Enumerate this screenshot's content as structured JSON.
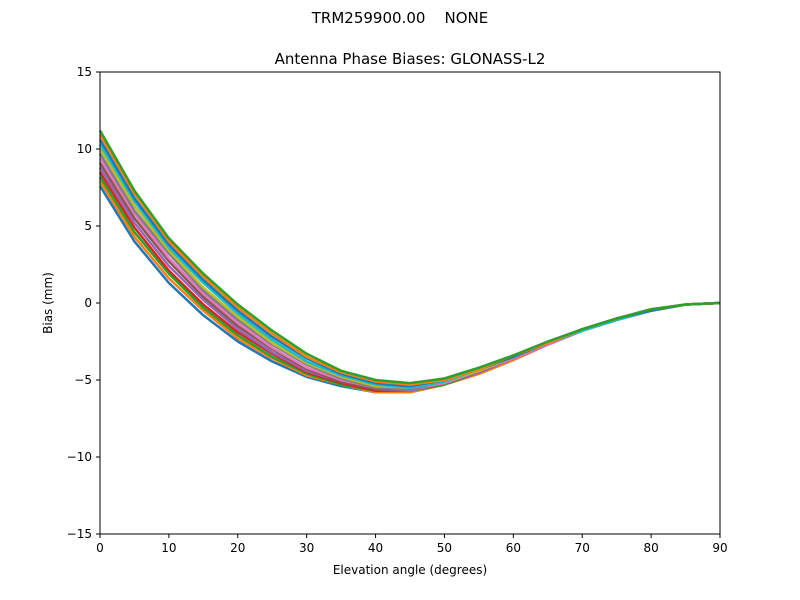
{
  "page": {
    "suptitle": "TRM259900.00    NONE"
  },
  "chart_data": {
    "type": "line",
    "title": "Antenna Phase Biases: GLONASS-L2",
    "xlabel": "Elevation angle (degrees)",
    "ylabel": "Bias (mm)",
    "xlim": [
      0,
      90
    ],
    "ylim": [
      -15,
      15
    ],
    "xticks": [
      0,
      10,
      20,
      30,
      40,
      50,
      60,
      70,
      80,
      90
    ],
    "yticks": [
      -15,
      -10,
      -5,
      0,
      5,
      10,
      15
    ],
    "xtick_labels": [
      "0",
      "10",
      "20",
      "30",
      "40",
      "50",
      "60",
      "70",
      "80",
      "90"
    ],
    "ytick_labels": [
      "−15",
      "−10",
      "−5",
      "0",
      "5",
      "10",
      "15"
    ],
    "grid": false,
    "legend": "none",
    "x": [
      0,
      5,
      10,
      15,
      20,
      25,
      30,
      35,
      40,
      45,
      50,
      55,
      60,
      65,
      70,
      75,
      80,
      85,
      90
    ],
    "series_colors": [
      "#1f77b4",
      "#ff7f0e",
      "#2ca02c",
      "#d62728",
      "#9467bd",
      "#8c564b",
      "#e377c2",
      "#7f7f7f",
      "#bcbd22",
      "#17becf"
    ],
    "series": [
      {
        "values": [
          7.6,
          4.0,
          1.3,
          -0.8,
          -2.5,
          -3.8,
          -4.8,
          -5.4,
          -5.8,
          -5.8,
          -5.3,
          -4.6,
          -3.7,
          -2.7,
          -1.8,
          -1.1,
          -0.5,
          -0.1,
          0.0
        ]
      },
      {
        "values": [
          7.9,
          4.3,
          1.6,
          -0.5,
          -2.3,
          -3.6,
          -4.7,
          -5.3,
          -5.8,
          -5.8,
          -5.3,
          -4.6,
          -3.7,
          -2.7,
          -1.8,
          -1.1,
          -0.5,
          -0.1,
          0.0
        ]
      },
      {
        "values": [
          8.2,
          4.6,
          1.9,
          -0.3,
          -2.1,
          -3.5,
          -4.6,
          -5.3,
          -5.7,
          -5.7,
          -5.3,
          -4.5,
          -3.6,
          -2.7,
          -1.8,
          -1.1,
          -0.5,
          -0.1,
          0.0
        ]
      },
      {
        "values": [
          8.5,
          4.9,
          2.1,
          -0.1,
          -1.9,
          -3.3,
          -4.5,
          -5.2,
          -5.7,
          -5.7,
          -5.2,
          -4.5,
          -3.6,
          -2.7,
          -1.8,
          -1.1,
          -0.5,
          -0.1,
          0.0
        ]
      },
      {
        "values": [
          8.8,
          5.2,
          2.4,
          0.2,
          -1.7,
          -3.2,
          -4.4,
          -5.1,
          -5.6,
          -5.7,
          -5.2,
          -4.5,
          -3.6,
          -2.7,
          -1.8,
          -1.1,
          -0.5,
          -0.1,
          0.0
        ]
      },
      {
        "values": [
          9.1,
          5.5,
          2.7,
          0.4,
          -1.5,
          -3.0,
          -4.3,
          -5.1,
          -5.6,
          -5.6,
          -5.2,
          -4.4,
          -3.6,
          -2.7,
          -1.8,
          -1.1,
          -0.5,
          -0.1,
          0.0
        ]
      },
      {
        "values": [
          9.4,
          5.8,
          2.9,
          0.6,
          -1.3,
          -2.9,
          -4.2,
          -5.0,
          -5.5,
          -5.6,
          -5.2,
          -4.4,
          -3.6,
          -2.7,
          -1.8,
          -1.1,
          -0.5,
          -0.1,
          0.0
        ]
      },
      {
        "values": [
          9.7,
          6.0,
          3.2,
          0.8,
          -1.1,
          -2.7,
          -4.0,
          -4.9,
          -5.5,
          -5.6,
          -5.1,
          -4.4,
          -3.5,
          -2.6,
          -1.8,
          -1.1,
          -0.5,
          -0.1,
          0.0
        ]
      },
      {
        "values": [
          10.0,
          6.3,
          3.4,
          1.0,
          -0.9,
          -2.6,
          -3.9,
          -4.8,
          -5.4,
          -5.5,
          -5.1,
          -4.4,
          -3.5,
          -2.6,
          -1.8,
          -1.1,
          -0.5,
          -0.1,
          0.0
        ]
      },
      {
        "values": [
          10.3,
          6.6,
          3.6,
          1.3,
          -0.7,
          -2.4,
          -3.8,
          -4.7,
          -5.3,
          -5.5,
          -5.1,
          -4.3,
          -3.5,
          -2.6,
          -1.8,
          -1.1,
          -0.5,
          -0.1,
          0.0
        ]
      },
      {
        "values": [
          10.6,
          6.8,
          3.8,
          1.5,
          -0.5,
          -2.2,
          -3.6,
          -4.6,
          -5.2,
          -5.4,
          -5.0,
          -4.3,
          -3.5,
          -2.6,
          -1.7,
          -1.0,
          -0.5,
          -0.1,
          0.0
        ]
      },
      {
        "values": [
          10.9,
          7.1,
          4.0,
          1.7,
          -0.3,
          -2.0,
          -3.5,
          -4.5,
          -5.1,
          -5.3,
          -5.0,
          -4.3,
          -3.4,
          -2.6,
          -1.7,
          -1.0,
          -0.4,
          -0.1,
          0.0
        ]
      },
      {
        "values": [
          11.2,
          7.3,
          4.2,
          1.9,
          -0.1,
          -1.8,
          -3.3,
          -4.4,
          -5.0,
          -5.2,
          -4.9,
          -4.2,
          -3.4,
          -2.5,
          -1.7,
          -1.0,
          -0.4,
          -0.1,
          0.0
        ]
      }
    ]
  }
}
